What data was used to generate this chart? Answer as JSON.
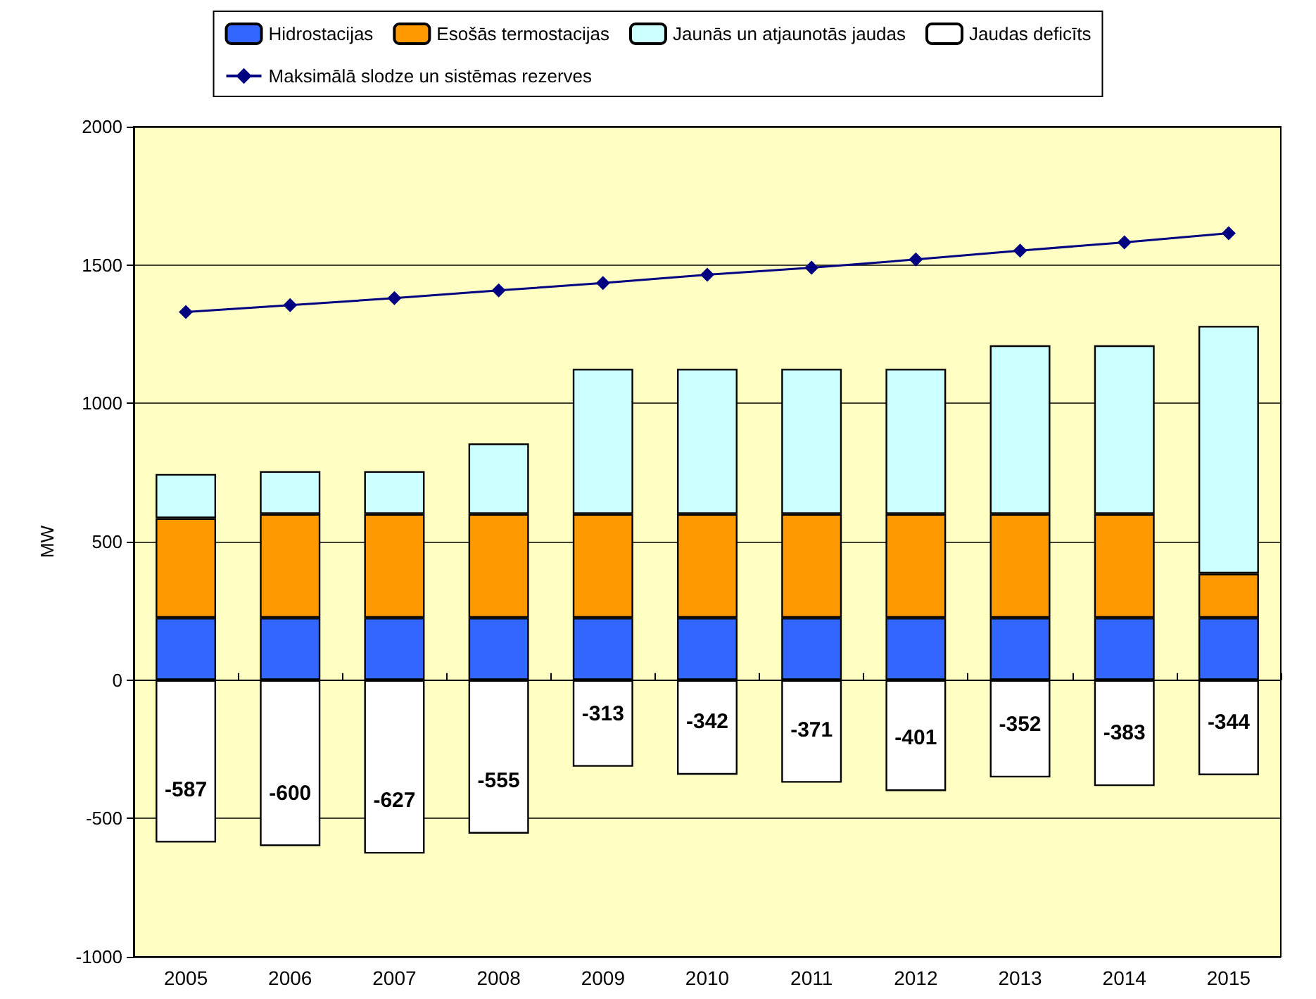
{
  "chart_data": {
    "type": "bar",
    "stacked": true,
    "ylabel": "MW",
    "categories": [
      "2005",
      "2006",
      "2007",
      "2008",
      "2009",
      "2010",
      "2011",
      "2012",
      "2013",
      "2014",
      "2015"
    ],
    "series": [
      {
        "name": "Hidrostacijas",
        "color": "#3366ff",
        "values": [
          225,
          225,
          225,
          225,
          225,
          225,
          225,
          225,
          225,
          225,
          225
        ]
      },
      {
        "name": "Esošās termostacijas",
        "color": "#ff9900",
        "values": [
          360,
          375,
          375,
          375,
          375,
          375,
          375,
          375,
          375,
          375,
          160
        ]
      },
      {
        "name": "Jaunās un atjaunotās jaudas",
        "color": "#ccffff",
        "values": [
          160,
          155,
          155,
          255,
          525,
          525,
          525,
          525,
          610,
          610,
          895
        ]
      },
      {
        "name": "Jaudas deficīts",
        "color": "#ffffff",
        "values": [
          -587,
          -600,
          -627,
          -555,
          -313,
          -342,
          -371,
          -401,
          -352,
          -383,
          -344
        ],
        "value_labels": [
          "-587",
          "-600",
          "-627",
          "-555",
          "-313",
          "-342",
          "-371",
          "-401",
          "-352",
          "-383",
          "-344"
        ]
      },
      {
        "name": "Maksimālā slodze un sistēmas rezerves",
        "type": "line",
        "color": "#000080",
        "marker": "diamond",
        "values": [
          1330,
          1355,
          1380,
          1408,
          1435,
          1465,
          1490,
          1520,
          1552,
          1582,
          1615
        ]
      }
    ],
    "ylim": [
      -1000,
      2000
    ],
    "yticks": [
      -1000,
      -500,
      0,
      500,
      1000,
      1500,
      2000
    ],
    "grid": "y",
    "legend": "top"
  }
}
